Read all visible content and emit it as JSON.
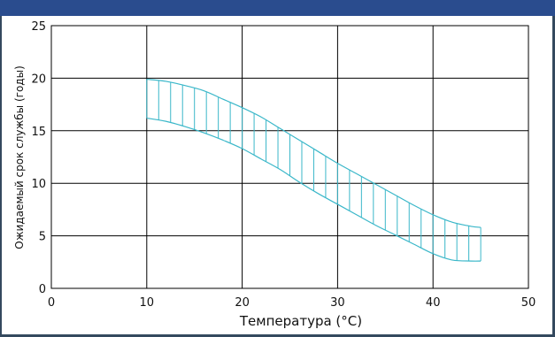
{
  "chart_data": {
    "type": "area",
    "xlabel": "Температура (°C)",
    "ylabel": "Ожидаемый срок службы (годы)",
    "xlim": [
      0,
      50
    ],
    "ylim": [
      0,
      25
    ],
    "xticks": [
      "0",
      "10",
      "20",
      "30",
      "40",
      "50"
    ],
    "yticks": [
      "0",
      "5",
      "10",
      "15",
      "20",
      "25"
    ],
    "grid": true,
    "band_color": "#3ab7c9",
    "upper": {
      "x": [
        10,
        12,
        14,
        16,
        18,
        20,
        22,
        24,
        26,
        28,
        30,
        32,
        34,
        36,
        38,
        40,
        42,
        44,
        45
      ],
      "y": [
        19.9,
        19.7,
        19.3,
        18.8,
        18.0,
        17.2,
        16.3,
        15.2,
        14.1,
        13.0,
        11.9,
        10.9,
        9.9,
        8.9,
        7.9,
        7.0,
        6.3,
        5.9,
        5.8
      ]
    },
    "lower": {
      "x": [
        10,
        12,
        14,
        16,
        18,
        20,
        22,
        24,
        26,
        28,
        30,
        32,
        34,
        36,
        38,
        40,
        42,
        44,
        45
      ],
      "y": [
        16.2,
        15.9,
        15.4,
        14.8,
        14.1,
        13.3,
        12.3,
        11.3,
        10.1,
        9.0,
        8.0,
        7.0,
        6.0,
        5.1,
        4.2,
        3.3,
        2.7,
        2.6,
        2.6
      ]
    },
    "hatch_step": 1.25
  }
}
